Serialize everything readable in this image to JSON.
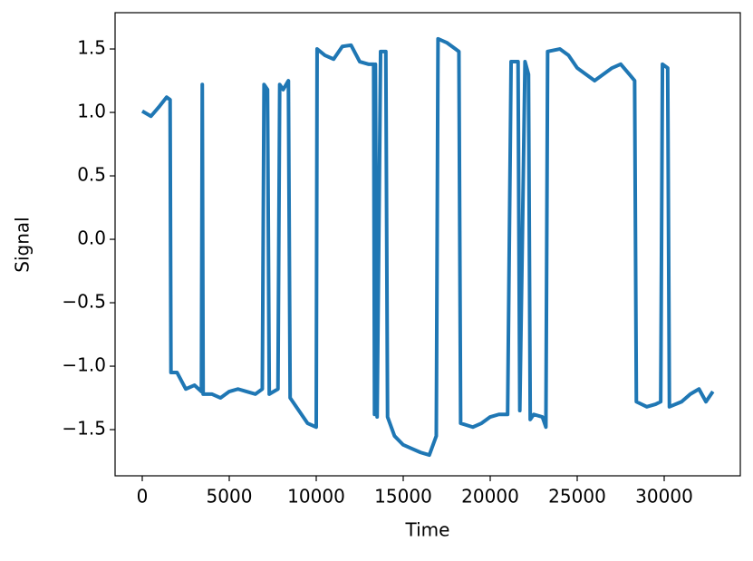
{
  "chart_data": {
    "type": "line",
    "x_label": "Time",
    "y_label": "Signal",
    "x": [
      0,
      500,
      1000,
      1400,
      1600,
      1650,
      2000,
      2500,
      3000,
      3400,
      3450,
      3500,
      4000,
      4500,
      5000,
      5500,
      6000,
      6500,
      6900,
      7000,
      7200,
      7300,
      7800,
      7900,
      8100,
      8400,
      8500,
      9000,
      9500,
      10000,
      10050,
      10500,
      11000,
      11500,
      12000,
      12500,
      13000,
      13300,
      13350,
      13400,
      13500,
      13700,
      14000,
      14100,
      14500,
      15000,
      15500,
      16000,
      16500,
      16900,
      17000,
      17500,
      18000,
      18200,
      18300,
      19000,
      19500,
      20000,
      20500,
      21000,
      21200,
      21600,
      21700,
      22000,
      22200,
      22300,
      22500,
      23000,
      23200,
      23300,
      24000,
      24500,
      25000,
      25500,
      26000,
      26500,
      27000,
      27500,
      28000,
      28300,
      28400,
      29000,
      29500,
      29800,
      29900,
      30200,
      30300,
      31000,
      31500,
      32000,
      32400,
      32800
    ],
    "series": [
      {
        "name": "Signal",
        "color": "#1f77b4",
        "values": [
          1.01,
          0.97,
          1.05,
          1.12,
          1.1,
          -1.05,
          -1.05,
          -1.18,
          -1.15,
          -1.2,
          1.22,
          -1.22,
          -1.22,
          -1.25,
          -1.2,
          -1.18,
          -1.2,
          -1.22,
          -1.18,
          1.22,
          1.18,
          -1.22,
          -1.18,
          1.22,
          1.18,
          1.25,
          -1.25,
          -1.35,
          -1.45,
          -1.48,
          1.5,
          1.45,
          1.42,
          1.52,
          1.53,
          1.4,
          1.38,
          1.38,
          -1.38,
          1.38,
          -1.4,
          1.48,
          1.48,
          -1.4,
          -1.55,
          -1.62,
          -1.65,
          -1.68,
          -1.7,
          -1.55,
          1.58,
          1.55,
          1.5,
          1.48,
          -1.45,
          -1.48,
          -1.45,
          -1.4,
          -1.38,
          -1.38,
          1.4,
          1.4,
          -1.35,
          1.4,
          1.3,
          -1.42,
          -1.38,
          -1.4,
          -1.48,
          1.48,
          1.5,
          1.45,
          1.35,
          1.3,
          1.25,
          1.3,
          1.35,
          1.38,
          1.3,
          1.25,
          -1.28,
          -1.32,
          -1.3,
          -1.28,
          1.38,
          1.35,
          -1.32,
          -1.28,
          -1.22,
          -1.18,
          -1.28,
          -1.2
        ]
      }
    ],
    "xlim": [
      -1562,
      34375
    ],
    "ylim": [
      -1.864,
      1.786
    ],
    "xticks": [
      0,
      5000,
      10000,
      15000,
      20000,
      25000,
      30000
    ],
    "yticks": [
      {
        "value": -1.5,
        "label": "−1.5"
      },
      {
        "value": -1.0,
        "label": "−1.0"
      },
      {
        "value": -0.5,
        "label": "−0.5"
      },
      {
        "value": 0,
        "label": "0.0"
      },
      0.5,
      {
        "value": 1.0,
        "label": "1.0"
      },
      1.5
    ],
    "grid": false
  }
}
